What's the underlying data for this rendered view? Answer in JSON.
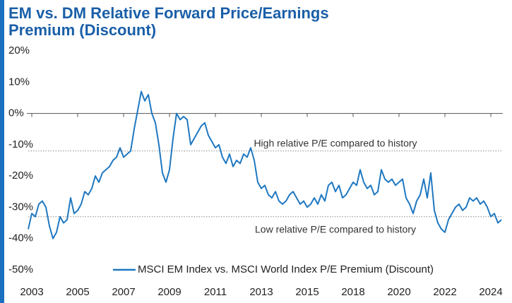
{
  "chart_data": {
    "type": "line",
    "title": "EM vs. DM Relative Forward Price/Earnings Premium (Discount)",
    "categories": [
      null,
      "2003",
      null,
      null,
      null,
      null,
      null,
      null,
      null,
      null,
      null,
      null,
      null,
      null,
      "2005",
      null,
      null,
      null,
      null,
      null,
      null,
      null,
      null,
      null,
      null,
      null,
      null,
      "2007",
      null,
      null,
      null,
      null,
      null,
      null,
      null,
      null,
      null,
      null,
      null,
      null,
      "2009",
      null,
      null,
      null,
      null,
      null,
      null,
      null,
      null,
      null,
      null,
      null,
      null,
      "2011",
      null,
      null,
      null,
      null,
      null,
      null,
      null,
      null,
      null,
      null,
      null,
      null,
      "2013",
      null,
      null,
      null,
      null,
      null,
      null,
      null,
      null,
      null,
      null,
      null,
      null,
      "2015",
      null,
      null,
      null,
      null,
      null,
      null,
      null,
      null,
      null,
      null,
      null,
      null,
      "2018",
      null,
      null,
      null,
      null,
      null,
      null,
      null,
      null,
      null,
      null,
      null,
      null,
      "2020",
      null,
      null,
      null,
      null,
      null,
      null,
      null,
      null,
      null,
      null,
      null,
      null,
      "2022",
      null,
      null,
      null,
      null,
      null,
      null,
      null,
      null,
      null,
      null,
      null,
      null,
      "2024",
      null,
      null,
      null
    ],
    "series": [
      {
        "name": "MSCI EM Index vs. MSCI World Index P/E Premium (Discount)",
        "color": "#1f78c1",
        "values": [
          -37,
          -32,
          -33,
          -29,
          -28,
          -30,
          -36,
          -40,
          -38,
          -33,
          -35,
          -34,
          -27,
          -32,
          -31,
          -29,
          -25,
          -26,
          -24,
          -20,
          -22,
          -19,
          -18,
          -17,
          -15,
          -14,
          -11,
          -14,
          -13,
          -12,
          -5,
          1,
          7,
          4,
          6,
          0,
          -3,
          -10,
          -19,
          -22,
          -18,
          -8,
          0,
          -2,
          -1,
          -2,
          -10,
          -8,
          -6,
          -4,
          -3,
          -7,
          -9,
          -11,
          -10,
          -14,
          -16,
          -13,
          -17,
          -15,
          -16,
          -13,
          -14,
          -11,
          -15,
          -22,
          -24,
          -23,
          -26,
          -27,
          -25,
          -28,
          -29,
          -28,
          -26,
          -25,
          -27,
          -29,
          -28,
          -30,
          -29,
          -27,
          -29,
          -26,
          -28,
          -23,
          -22,
          -25,
          -23,
          -27,
          -26,
          -24,
          -22,
          -23,
          -18,
          -22,
          -24,
          -23,
          -26,
          -25,
          -18,
          -21,
          -22,
          -21,
          -23,
          -22,
          -21,
          -27,
          -29,
          -32,
          -28,
          -26,
          -21,
          -27,
          -19,
          -31,
          -35,
          -37,
          -38,
          -34,
          -32,
          -30,
          -29,
          -31,
          -30,
          -27,
          -28,
          -27,
          -29,
          -28,
          -30,
          -33,
          -32,
          -35,
          -34
        ]
      }
    ],
    "ylim": [
      -50,
      20
    ],
    "yticks": [
      {
        "value": -50,
        "label": "-50%"
      },
      {
        "value": -40,
        "label": "-40%"
      },
      {
        "value": -30,
        "label": "-30%"
      },
      {
        "value": -20,
        "label": "-20%"
      },
      {
        "value": -10,
        "label": "-10%"
      },
      {
        "value": 0,
        "label": "0%"
      },
      {
        "value": 10,
        "label": "10%"
      },
      {
        "value": 20,
        "label": "20%"
      }
    ],
    "reference_lines": [
      {
        "value": -12,
        "label": "High relative P/E compared to history"
      },
      {
        "value": -33,
        "label": "Low relative P/E compared to history"
      }
    ],
    "legend": "bottom"
  }
}
